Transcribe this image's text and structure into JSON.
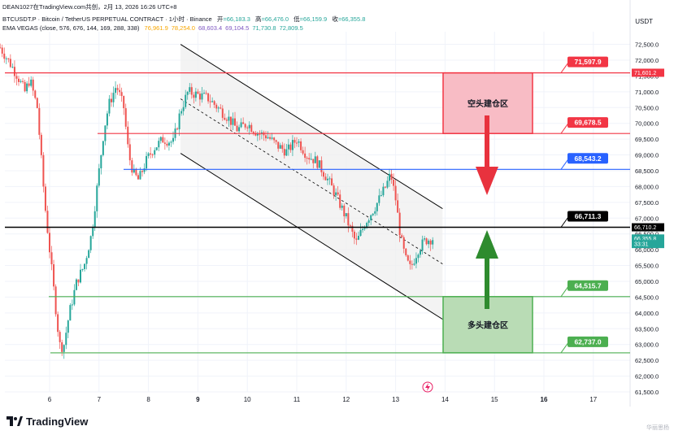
{
  "header": {
    "line1": "DEAN1027在TradingView.com共创，2月 13, 2026 16:26 UTC+8",
    "symbol": "BTCUSDT.P · Bitcoin / TetherUS PERPETUAL CONTRACT · 1小时 · Binance",
    "o_label": "开",
    "o_value": "=66,183.3",
    "h_label": "高",
    "h_value": "=66,476.0",
    "l_label": "低",
    "l_value": "=66,159.9",
    "c_label": "收",
    "c_value": "=66,355.8",
    "ema_name": "EMA VEGAS (close, 576, 676, 144, 169, 288, 338)",
    "ema_values": [
      "76,961.9",
      "78,254.0",
      "68,603.4",
      "69,104.5",
      "71,730.8",
      "72,809.5"
    ],
    "ema_colors": [
      "#f7a600",
      "#f7a600",
      "#7e57c2",
      "#7e57c2",
      "#26a69a",
      "#26a69a"
    ]
  },
  "unit_label": "USDT",
  "footer": {
    "logo_text": "TradingView",
    "watermark": "华丽思杨"
  },
  "colors": {
    "up": "#26a69a",
    "down": "#ef5350",
    "resistance": "#f23645",
    "support": "#4caf50",
    "blue": "#2962ff",
    "black": "#000000",
    "short_zone": "#f8bcc5",
    "long_zone": "#b9dcb5"
  },
  "chart_data": {
    "type": "candlestick",
    "symbol": "BTCUSDT.P",
    "interval": "1小时",
    "ylim": [
      61500,
      72900
    ],
    "x_ticks": [
      "6",
      "7",
      "8",
      "9",
      "10",
      "11",
      "12",
      "13",
      "14",
      "15",
      "16",
      "17"
    ],
    "y_ticks": [
      "72,500.0",
      "72,000.0",
      "71,500.0",
      "71,000.0",
      "70,500.0",
      "70,000.0",
      "69,500.0",
      "69,000.0",
      "68,500.0",
      "68,000.0",
      "67,500.0",
      "67,000.0",
      "66,500.0",
      "66,000.0",
      "65,500.0",
      "65,000.0",
      "64,500.0",
      "64,000.0",
      "63,500.0",
      "63,000.0",
      "62,500.0",
      "62,000.0",
      "61,500.0"
    ],
    "levels": [
      {
        "label": "71,597.9",
        "value": 71597.9,
        "style": "resistance"
      },
      {
        "label": "69,678.5",
        "value": 69678.5,
        "style": "resistance"
      },
      {
        "label": "68,543.2",
        "value": 68543.2,
        "style": "blue"
      },
      {
        "label": "66,711.3",
        "value": 66711.3,
        "style": "black"
      },
      {
        "label": "64,515.7",
        "value": 64515.7,
        "style": "support"
      },
      {
        "label": "62,737.0",
        "value": 62737.0,
        "style": "support"
      }
    ],
    "axis_badges": [
      {
        "text": "71,601.2",
        "value": 71601.2,
        "style": "resistance"
      },
      {
        "text": "66,710.2",
        "value": 66710.2,
        "style": "black"
      },
      {
        "text": "66,355.8",
        "value": 66355.8,
        "style": "up"
      },
      {
        "text": "33:31",
        "value": 66180,
        "style": "up"
      }
    ],
    "zones": [
      {
        "label": "空头建仓区",
        "top": 71597.9,
        "bottom": 69678.5,
        "style": "short_zone"
      },
      {
        "label": "多头建仓区",
        "top": 64515.7,
        "bottom": 62737.0,
        "style": "long_zone"
      }
    ],
    "channel": {
      "start_day": 8.65,
      "end_day": 13.95,
      "upper_start": 72500,
      "upper_end": 67300,
      "lower_start": 69050,
      "lower_end": 63800
    },
    "candles_key": [
      [
        5.0,
        72400
      ],
      [
        5.2,
        71900
      ],
      [
        5.35,
        71500
      ],
      [
        5.5,
        71000
      ],
      [
        5.6,
        71400
      ],
      [
        5.75,
        70500
      ],
      [
        5.9,
        67500
      ],
      [
        6.0,
        66000
      ],
      [
        6.1,
        64500
      ],
      [
        6.2,
        63000
      ],
      [
        6.28,
        62900
      ],
      [
        6.4,
        64000
      ],
      [
        6.55,
        65000
      ],
      [
        6.7,
        65500
      ],
      [
        6.85,
        66500
      ],
      [
        7.0,
        68500
      ],
      [
        7.1,
        69800
      ],
      [
        7.2,
        70600
      ],
      [
        7.35,
        71200
      ],
      [
        7.5,
        70500
      ],
      [
        7.6,
        69000
      ],
      [
        7.7,
        68400
      ],
      [
        7.8,
        68200
      ],
      [
        7.95,
        68800
      ],
      [
        8.1,
        69200
      ],
      [
        8.3,
        69500
      ],
      [
        8.5,
        69400
      ],
      [
        8.65,
        70400
      ],
      [
        8.8,
        71000
      ],
      [
        9.0,
        70900
      ],
      [
        9.2,
        70800
      ],
      [
        9.4,
        70500
      ],
      [
        9.6,
        70200
      ],
      [
        9.8,
        69800
      ],
      [
        10.0,
        70000
      ],
      [
        10.2,
        69700
      ],
      [
        10.4,
        69600
      ],
      [
        10.6,
        69300
      ],
      [
        10.8,
        69100
      ],
      [
        11.0,
        69500
      ],
      [
        11.2,
        69000
      ],
      [
        11.4,
        68800
      ],
      [
        11.6,
        68300
      ],
      [
        11.8,
        67700
      ],
      [
        12.0,
        67000
      ],
      [
        12.2,
        66200
      ],
      [
        12.4,
        66900
      ],
      [
        12.6,
        67400
      ],
      [
        12.8,
        68000
      ],
      [
        12.9,
        68400
      ],
      [
        13.0,
        67600
      ],
      [
        13.1,
        66400
      ],
      [
        13.2,
        65700
      ],
      [
        13.3,
        65400
      ],
      [
        13.45,
        66000
      ],
      [
        13.6,
        66300
      ],
      [
        13.75,
        66356
      ]
    ]
  }
}
